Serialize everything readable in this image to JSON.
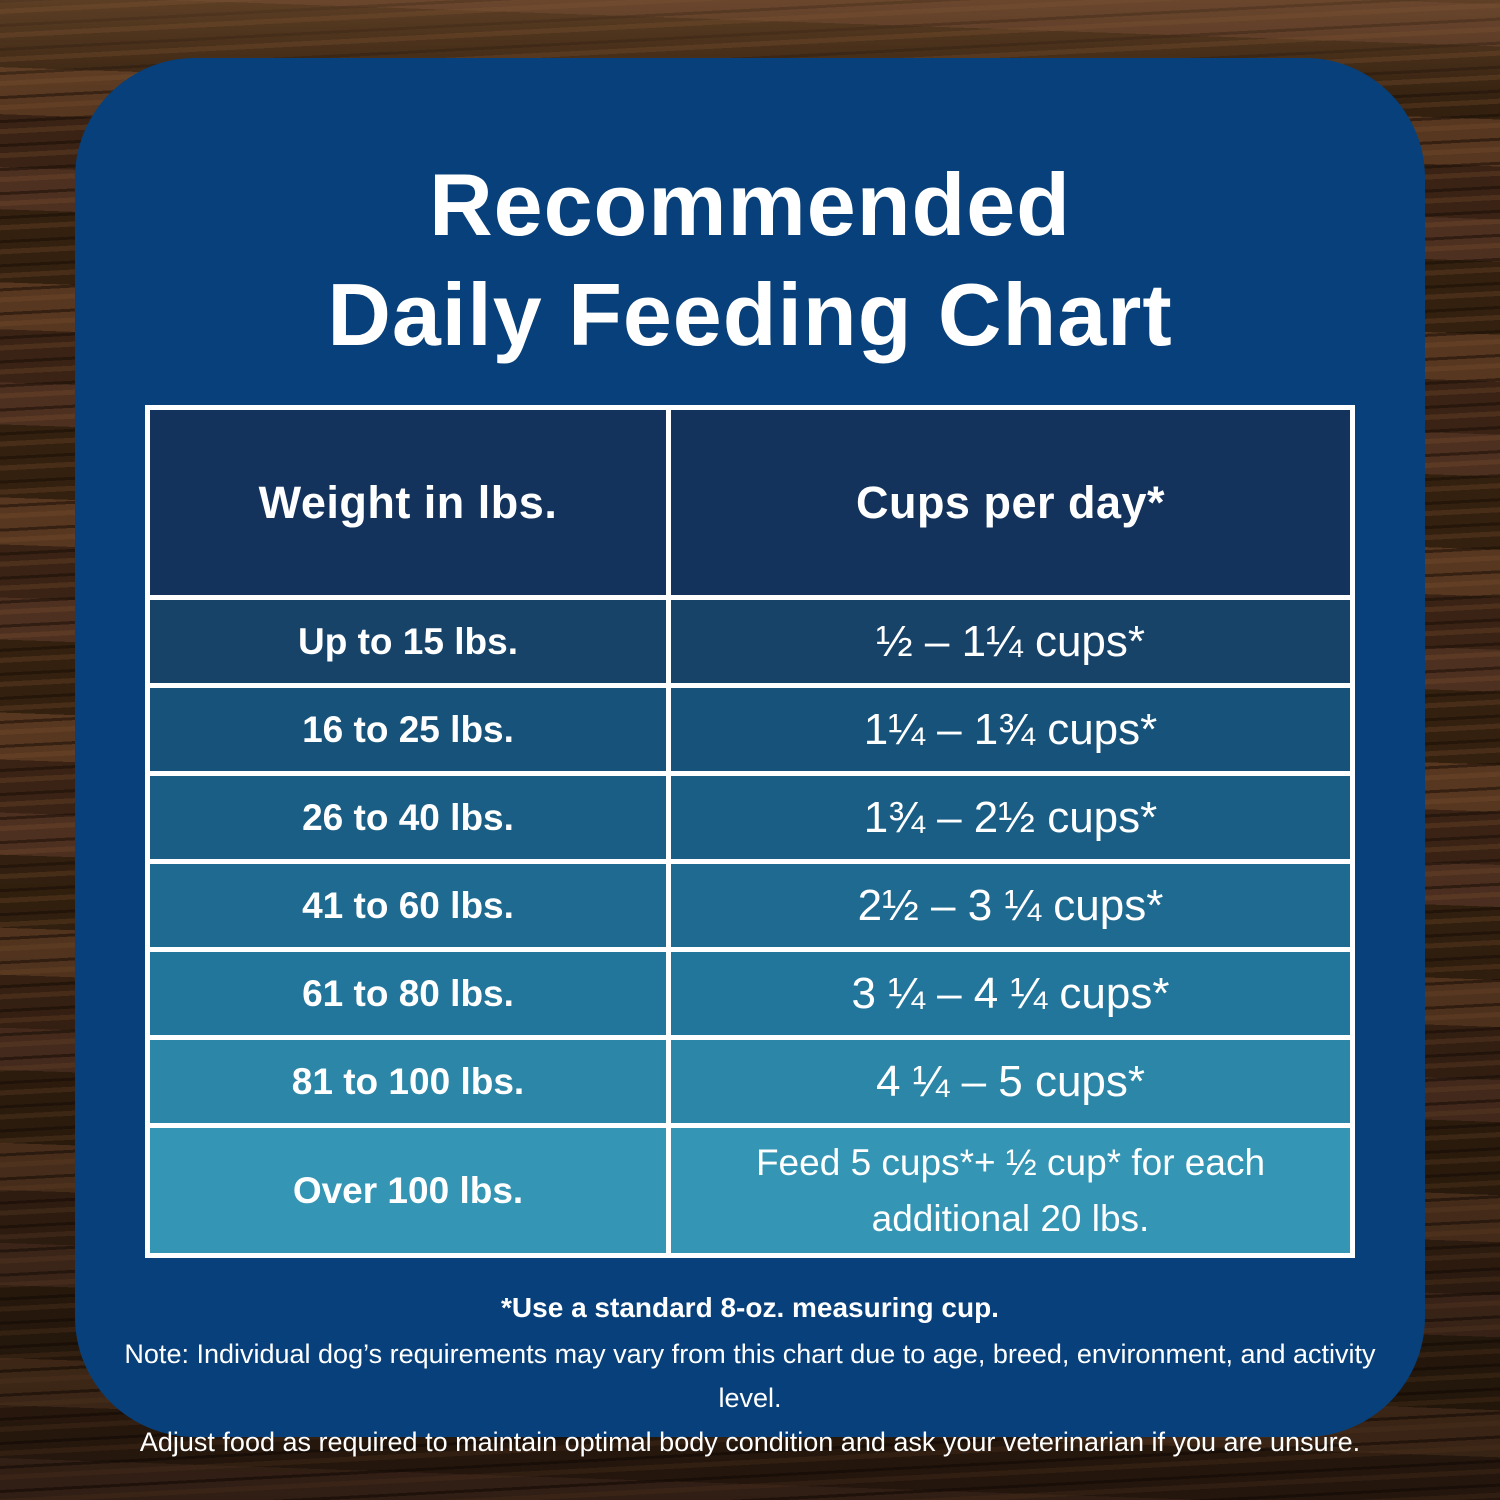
{
  "title": {
    "line1": "Recommended",
    "line2": "Daily Feeding Chart"
  },
  "chart_data": {
    "type": "table",
    "title": "Recommended Daily Feeding Chart",
    "columns": [
      "Weight in lbs.",
      "Cups per day*"
    ],
    "rows": [
      [
        "Up to 15 lbs.",
        "½ – 1¼ cups*"
      ],
      [
        "16 to 25 lbs.",
        "1¼ – 1¾ cups*"
      ],
      [
        "26 to 40 lbs.",
        "1¾ – 2½ cups*"
      ],
      [
        "41 to 60 lbs.",
        "2½ – 3 ¼ cups*"
      ],
      [
        "61 to 80 lbs.",
        "3 ¼ – 4 ¼ cups*"
      ],
      [
        "81 to 100 lbs.",
        "4 ¼ – 5 cups*"
      ],
      [
        "Over 100 lbs.",
        "Feed 5 cups*+ ½ cup* for each additional 20 lbs."
      ]
    ]
  },
  "footnotes": {
    "measuring_cup": "*Use a standard 8-oz. measuring cup.",
    "note_line1": "Note: Individual dog’s requirements may vary from this chart due to age, breed, environment, and activity level.",
    "note_line2": "Adjust food as required to maintain optimal body condition and ask your veterinarian if you are unsure."
  },
  "style": {
    "card_bg": "#07407A",
    "header_bg": "#14335C",
    "border_color": "#FFFFFF",
    "text_color": "#FFFFFF",
    "row_colors": [
      "#174369",
      "#165279",
      "#1A5E85",
      "#1E6A91",
      "#22769C",
      "#2B86A7",
      "#3496B4"
    ]
  }
}
